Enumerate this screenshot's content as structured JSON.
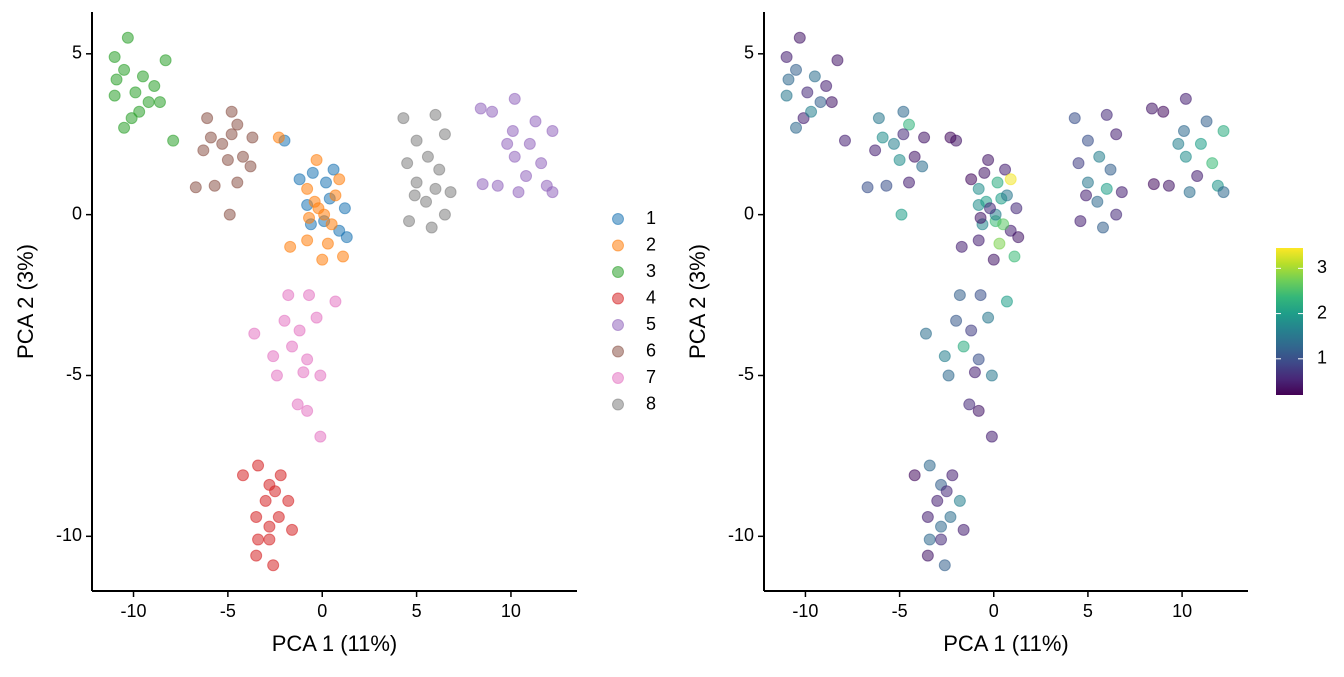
{
  "chart_data": [
    {
      "type": "scatter",
      "xlabel": "PCA 1 (11%)",
      "ylabel": "PCA 2 (3%)",
      "xlim": [
        -12.2,
        13.5
      ],
      "ylim": [
        -11.7,
        6.3
      ],
      "xticks": [
        -10,
        -5,
        0,
        5,
        10
      ],
      "yticks": [
        -10,
        -5,
        0,
        5
      ],
      "legend": "right",
      "series": [
        {
          "name": "1",
          "color": "#1f77b4",
          "x": [
            -1.2,
            -0.5,
            0.2,
            0.6,
            -0.8,
            0.4,
            1.2,
            -0.6,
            0.9,
            1.3,
            -2.0,
            0.1
          ],
          "y": [
            1.1,
            1.3,
            1.0,
            1.4,
            0.3,
            0.5,
            0.2,
            -0.3,
            -0.5,
            -0.7,
            2.3,
            -0.2
          ]
        },
        {
          "name": "2",
          "color": "#ff7f0e",
          "x": [
            -2.3,
            -0.3,
            -0.8,
            0.9,
            -0.4,
            0.1,
            -0.7,
            0.5,
            -1.7,
            -0.8,
            0.0,
            1.1,
            0.3,
            -0.2,
            0.7
          ],
          "y": [
            2.4,
            1.7,
            0.8,
            1.1,
            0.4,
            0.0,
            -0.1,
            -0.3,
            -1.0,
            -0.8,
            -1.4,
            -1.3,
            -0.9,
            0.2,
            0.6
          ]
        },
        {
          "name": "3",
          "color": "#2ca02c",
          "x": [
            -11.0,
            -10.3,
            -10.5,
            -10.9,
            -9.5,
            -9.9,
            -11.0,
            -9.2,
            -10.1,
            -10.5,
            -8.6,
            -8.9,
            -7.9,
            -8.3,
            -9.7
          ],
          "y": [
            4.9,
            5.5,
            4.5,
            4.2,
            4.3,
            3.8,
            3.7,
            3.5,
            3.0,
            2.7,
            3.5,
            4.0,
            2.3,
            4.8,
            3.2
          ]
        },
        {
          "name": "4",
          "color": "#d62728",
          "x": [
            -4.2,
            -3.4,
            -2.2,
            -2.8,
            -2.5,
            -3.0,
            -1.8,
            -3.5,
            -2.3,
            -2.8,
            -1.6,
            -3.4,
            -2.8,
            -3.5,
            -2.6
          ],
          "y": [
            -8.1,
            -7.8,
            -8.1,
            -8.4,
            -8.6,
            -8.9,
            -8.9,
            -9.4,
            -9.4,
            -9.7,
            -9.8,
            -10.1,
            -10.1,
            -10.6,
            -10.9
          ]
        },
        {
          "name": "5",
          "color": "#9467bd",
          "x": [
            8.4,
            9.0,
            10.2,
            11.3,
            10.1,
            11.0,
            12.2,
            10.2,
            11.6,
            10.8,
            9.3,
            8.5,
            10.4,
            11.9,
            12.2,
            9.8
          ],
          "y": [
            3.3,
            3.2,
            3.6,
            2.9,
            2.6,
            2.2,
            2.6,
            1.8,
            1.6,
            1.2,
            0.9,
            0.95,
            0.7,
            0.9,
            0.7,
            2.2
          ]
        },
        {
          "name": "6",
          "color": "#8c564b",
          "x": [
            -6.1,
            -5.9,
            -4.8,
            -4.5,
            -5.3,
            -4.2,
            -5.0,
            -6.3,
            -3.7,
            -6.7,
            -5.7,
            -4.5,
            -4.9,
            -3.8,
            -4.8
          ],
          "y": [
            3.0,
            2.4,
            3.2,
            2.8,
            2.2,
            1.8,
            1.7,
            2.0,
            2.4,
            0.85,
            0.9,
            1.0,
            0.0,
            1.5,
            2.5
          ]
        },
        {
          "name": "7",
          "color": "#e377c2",
          "x": [
            -1.8,
            -0.7,
            0.7,
            -3.6,
            -2.0,
            -1.2,
            -0.3,
            -2.6,
            -1.6,
            -0.8,
            -2.4,
            -1.0,
            -0.1,
            -1.3,
            -0.8,
            -0.1
          ],
          "y": [
            -2.5,
            -2.5,
            -2.7,
            -3.7,
            -3.3,
            -3.6,
            -3.2,
            -4.4,
            -4.1,
            -4.5,
            -5.0,
            -4.9,
            -5.0,
            -5.9,
            -6.1,
            -6.9
          ]
        },
        {
          "name": "8",
          "color": "#7f7f7f",
          "x": [
            4.3,
            6.0,
            5.0,
            6.5,
            4.5,
            5.6,
            6.2,
            5.0,
            4.9,
            6.0,
            5.5,
            6.8,
            4.6,
            5.8,
            6.5
          ],
          "y": [
            3.0,
            3.1,
            2.3,
            2.5,
            1.6,
            1.8,
            1.4,
            1.0,
            0.6,
            0.8,
            0.4,
            0.7,
            -0.2,
            -0.4,
            0.0
          ]
        }
      ]
    },
    {
      "type": "scatter",
      "xlabel": "PCA 1 (11%)",
      "ylabel": "PCA 2 (3%)",
      "xlim": [
        -12.2,
        13.5
      ],
      "ylim": [
        -11.7,
        6.3
      ],
      "xticks": [
        -10,
        -5,
        0,
        5,
        10
      ],
      "yticks": [
        -10,
        -5,
        0,
        5
      ],
      "colormap": [
        "#440154",
        "#482878",
        "#3e4a89",
        "#31688e",
        "#26828e",
        "#1f9e89",
        "#35b779",
        "#6ece58",
        "#b5de2b",
        "#fde725"
      ],
      "clim": [
        0.2,
        3.45
      ],
      "cticks": [
        1,
        2,
        3
      ],
      "series": [
        {
          "x": [
            -1.2,
            -0.5,
            0.2,
            0.6,
            -0.8,
            0.4,
            1.2,
            -0.6,
            0.9,
            1.3,
            -2.0,
            0.1
          ],
          "y": [
            1.1,
            1.3,
            1.0,
            1.4,
            0.3,
            0.5,
            0.2,
            -0.3,
            -0.5,
            -0.7,
            2.3,
            -0.2
          ],
          "color_values": [
            0.3,
            0.4,
            2.2,
            0.5,
            1.8,
            2.0,
            0.6,
            1.7,
            0.5,
            0.4,
            0.4,
            2.4
          ]
        },
        {
          "x": [
            -2.3,
            -0.3,
            -0.8,
            0.9,
            -0.4,
            0.1,
            -0.7,
            0.5,
            -1.7,
            -0.8,
            0.0,
            1.1,
            0.3,
            -0.2,
            0.7
          ],
          "y": [
            2.4,
            1.7,
            0.8,
            1.1,
            0.4,
            0.0,
            -0.1,
            -0.3,
            -1.0,
            -0.8,
            -1.4,
            -1.3,
            -0.9,
            0.2,
            0.6
          ],
          "color_values": [
            0.3,
            0.4,
            1.8,
            3.4,
            2.0,
            1.6,
            0.4,
            2.6,
            0.5,
            0.5,
            0.4,
            2.4,
            2.8,
            0.6,
            1.5
          ]
        },
        {
          "x": [
            -11.0,
            -10.3,
            -10.5,
            -10.9,
            -9.5,
            -9.9,
            -11.0,
            -9.2,
            -10.1,
            -10.5,
            -8.6,
            -8.9,
            -7.9,
            -8.3,
            -9.7
          ],
          "y": [
            4.9,
            5.5,
            4.5,
            4.2,
            4.3,
            3.8,
            3.7,
            3.5,
            3.0,
            2.7,
            3.5,
            4.0,
            2.3,
            4.8,
            3.2
          ],
          "color_values": [
            0.5,
            0.4,
            1.2,
            1.3,
            1.4,
            0.6,
            1.5,
            1.2,
            0.5,
            1.3,
            0.4,
            0.5,
            0.5,
            0.4,
            1.6
          ]
        },
        {
          "x": [
            -4.2,
            -3.4,
            -2.2,
            -2.8,
            -2.5,
            -3.0,
            -1.8,
            -3.5,
            -2.3,
            -2.8,
            -1.6,
            -3.4,
            -2.8,
            -3.5,
            -2.6
          ],
          "y": [
            -8.1,
            -7.8,
            -8.1,
            -8.4,
            -8.6,
            -8.9,
            -8.9,
            -9.4,
            -9.4,
            -9.7,
            -9.8,
            -10.1,
            -10.1,
            -10.6,
            -10.9
          ],
          "color_values": [
            0.3,
            1.3,
            0.5,
            1.2,
            0.6,
            0.5,
            1.6,
            0.5,
            1.4,
            1.3,
            0.5,
            1.3,
            0.6,
            0.4,
            1.2
          ]
        },
        {
          "x": [
            8.4,
            9.0,
            10.2,
            11.3,
            10.1,
            11.0,
            12.2,
            10.2,
            11.6,
            10.8,
            9.3,
            8.5,
            10.4,
            11.9,
            12.2,
            9.8
          ],
          "y": [
            3.3,
            3.2,
            3.6,
            2.9,
            2.6,
            2.2,
            2.6,
            1.8,
            1.6,
            1.2,
            0.9,
            0.95,
            0.7,
            0.9,
            0.7,
            2.2
          ],
          "color_values": [
            0.4,
            0.3,
            0.5,
            1.2,
            1.3,
            2.0,
            2.2,
            1.8,
            2.4,
            0.5,
            0.4,
            0.3,
            1.4,
            1.9,
            1.3,
            1.6
          ]
        },
        {
          "x": [
            -6.1,
            -5.9,
            -4.8,
            -4.5,
            -5.3,
            -4.2,
            -5.0,
            -6.3,
            -3.7,
            -6.7,
            -5.7,
            -4.5,
            -4.9,
            -3.8,
            -4.8
          ],
          "y": [
            3.0,
            2.4,
            3.2,
            2.8,
            2.2,
            1.8,
            1.7,
            2.0,
            2.4,
            0.85,
            0.9,
            1.0,
            0.0,
            1.5,
            2.5
          ],
          "color_values": [
            1.5,
            1.8,
            1.3,
            2.3,
            1.6,
            0.4,
            1.8,
            0.5,
            0.4,
            1.0,
            1.0,
            0.5,
            2.0,
            1.4,
            0.6
          ]
        },
        {
          "x": [
            -1.8,
            -0.7,
            0.7,
            -3.6,
            -2.0,
            -1.2,
            -0.3,
            -2.6,
            -1.6,
            -0.8,
            -2.4,
            -1.0,
            -0.1,
            -1.3,
            -0.8,
            -0.1
          ],
          "y": [
            -2.5,
            -2.5,
            -2.7,
            -3.7,
            -3.3,
            -3.6,
            -3.2,
            -4.4,
            -4.1,
            -4.5,
            -5.0,
            -4.9,
            -5.0,
            -5.9,
            -6.1,
            -6.9
          ],
          "color_values": [
            1.2,
            1.0,
            2.0,
            1.4,
            1.1,
            0.8,
            1.5,
            1.6,
            2.2,
            1.0,
            1.3,
            0.5,
            1.5,
            0.6,
            0.4,
            0.5
          ]
        },
        {
          "x": [
            4.3,
            6.0,
            5.0,
            6.5,
            4.5,
            5.6,
            6.2,
            5.0,
            4.9,
            6.0,
            5.5,
            6.8,
            4.6,
            5.8,
            6.5
          ],
          "y": [
            3.0,
            3.1,
            2.3,
            2.5,
            1.6,
            1.8,
            1.4,
            1.0,
            0.6,
            0.8,
            0.4,
            0.7,
            -0.2,
            -0.4,
            0.0
          ],
          "color_values": [
            1.0,
            0.6,
            1.0,
            0.5,
            0.8,
            1.6,
            1.2,
            1.5,
            0.5,
            2.0,
            1.3,
            0.5,
            0.5,
            1.2,
            0.6
          ]
        }
      ]
    }
  ]
}
